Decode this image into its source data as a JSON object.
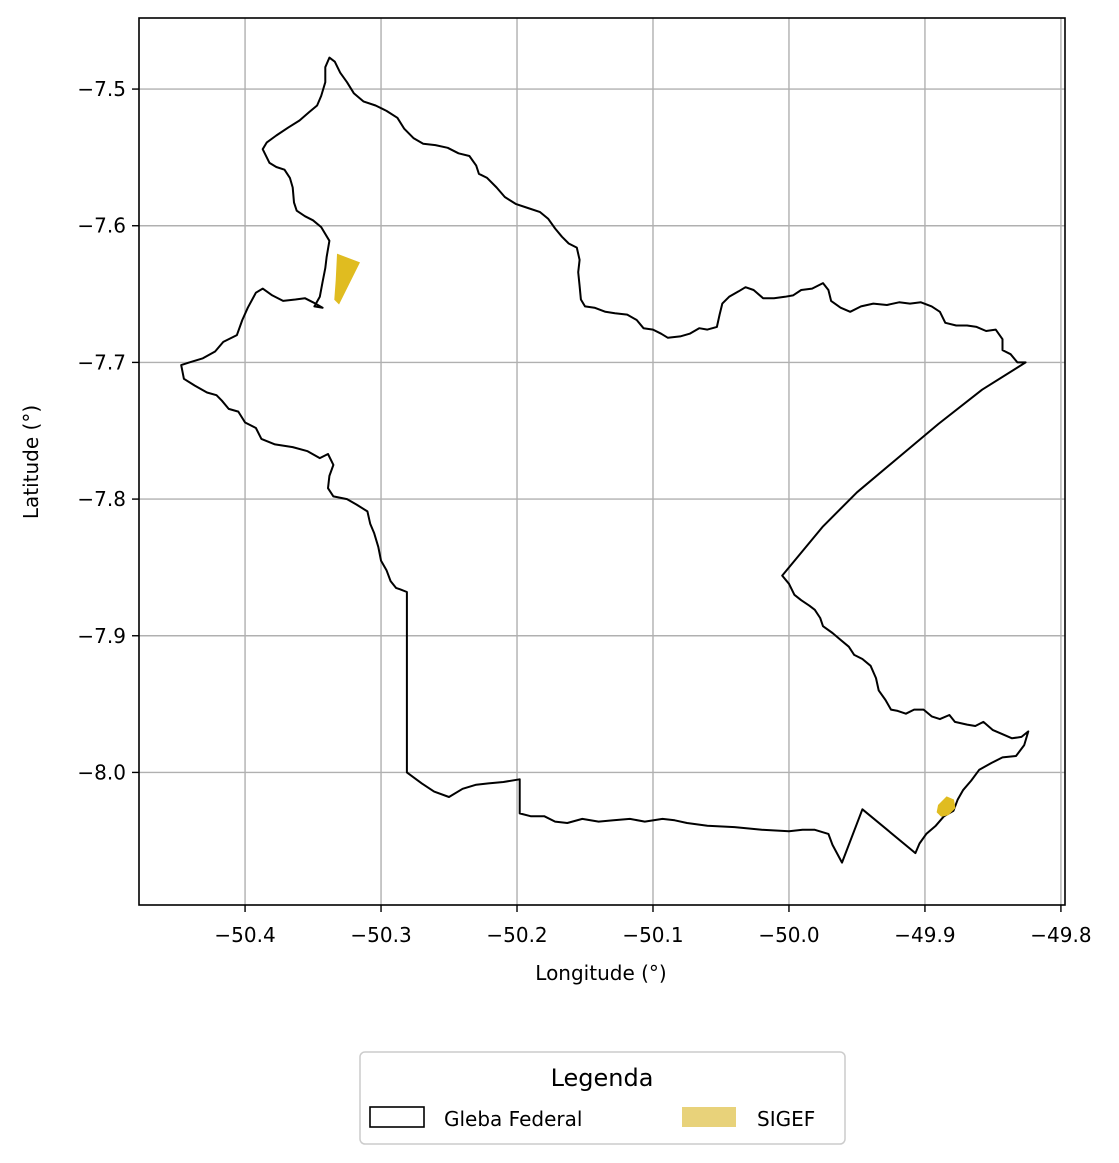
{
  "chart_data": {
    "type": "map",
    "xlabel": "Longitude (°)",
    "ylabel": "Latitude (°)",
    "xlim": [
      -50.478,
      -49.797
    ],
    "ylim": [
      -8.097,
      -7.448
    ],
    "x_ticks": [
      -50.4,
      -50.3,
      -50.2,
      -50.1,
      -50.0,
      -49.9,
      -49.8
    ],
    "y_ticks": [
      -7.5,
      -7.6,
      -7.7,
      -7.8,
      -7.9,
      -8.0
    ],
    "x_tick_labels": [
      "−50.4",
      "−50.3",
      "−50.2",
      "−50.1",
      "−50.0",
      "−49.9",
      "−49.8"
    ],
    "y_tick_labels": [
      "−7.5",
      "−7.6",
      "−7.7",
      "−7.8",
      "−7.9",
      "−8.0"
    ],
    "grid": true,
    "legend": {
      "title": "Legenda",
      "placement": "bottom-center",
      "entries": [
        {
          "label": "Gleba Federal",
          "style": "outline",
          "color": "#000000"
        },
        {
          "label": "SIGEF",
          "style": "fill",
          "color": "#e8d27a"
        }
      ]
    },
    "layers": [
      {
        "name": "Gleba Federal",
        "style": "outline",
        "color": "#000000",
        "polygon": [
          [
            -50.338,
            -7.477
          ],
          [
            -50.334,
            -7.48
          ],
          [
            -50.33,
            -7.488
          ],
          [
            -50.325,
            -7.495
          ],
          [
            -50.32,
            -7.503
          ],
          [
            -50.313,
            -7.509
          ],
          [
            -50.304,
            -7.512
          ],
          [
            -50.296,
            -7.516
          ],
          [
            -50.288,
            -7.521
          ],
          [
            -50.283,
            -7.529
          ],
          [
            -50.276,
            -7.536
          ],
          [
            -50.269,
            -7.54
          ],
          [
            -50.26,
            -7.541
          ],
          [
            -50.251,
            -7.543
          ],
          [
            -50.243,
            -7.547
          ],
          [
            -50.235,
            -7.549
          ],
          [
            -50.23,
            -7.556
          ],
          [
            -50.228,
            -7.562
          ],
          [
            -50.222,
            -7.565
          ],
          [
            -50.215,
            -7.572
          ],
          [
            -50.209,
            -7.579
          ],
          [
            -50.201,
            -7.584
          ],
          [
            -50.192,
            -7.587
          ],
          [
            -50.183,
            -7.59
          ],
          [
            -50.177,
            -7.595
          ],
          [
            -50.172,
            -7.602
          ],
          [
            -50.167,
            -7.608
          ],
          [
            -50.162,
            -7.613
          ],
          [
            -50.156,
            -7.616
          ],
          [
            -50.154,
            -7.625
          ],
          [
            -50.155,
            -7.634
          ],
          [
            -50.154,
            -7.644
          ],
          [
            -50.153,
            -7.654
          ],
          [
            -50.15,
            -7.659
          ],
          [
            -50.143,
            -7.66
          ],
          [
            -50.135,
            -7.663
          ],
          [
            -50.128,
            -7.664
          ],
          [
            -50.119,
            -7.665
          ],
          [
            -50.112,
            -7.669
          ],
          [
            -50.107,
            -7.675
          ],
          [
            -50.1,
            -7.676
          ],
          [
            -50.094,
            -7.679
          ],
          [
            -50.089,
            -7.682
          ],
          [
            -50.08,
            -7.681
          ],
          [
            -50.073,
            -7.679
          ],
          [
            -50.066,
            -7.675
          ],
          [
            -50.06,
            -7.676
          ],
          [
            -50.053,
            -7.674
          ],
          [
            -50.051,
            -7.665
          ],
          [
            -50.049,
            -7.657
          ],
          [
            -50.044,
            -7.652
          ],
          [
            -50.037,
            -7.648
          ],
          [
            -50.032,
            -7.645
          ],
          [
            -50.026,
            -7.647
          ],
          [
            -50.019,
            -7.653
          ],
          [
            -50.011,
            -7.653
          ],
          [
            -50.003,
            -7.652
          ],
          [
            -49.997,
            -7.651
          ],
          [
            -49.991,
            -7.647
          ],
          [
            -49.983,
            -7.646
          ],
          [
            -49.975,
            -7.642
          ],
          [
            -49.971,
            -7.647
          ],
          [
            -49.969,
            -7.655
          ],
          [
            -49.962,
            -7.66
          ],
          [
            -49.955,
            -7.663
          ],
          [
            -49.947,
            -7.659
          ],
          [
            -49.938,
            -7.657
          ],
          [
            -49.928,
            -7.658
          ],
          [
            -49.919,
            -7.656
          ],
          [
            -49.911,
            -7.657
          ],
          [
            -49.903,
            -7.656
          ],
          [
            -49.895,
            -7.659
          ],
          [
            -49.889,
            -7.663
          ],
          [
            -49.885,
            -7.671
          ],
          [
            -49.877,
            -7.673
          ],
          [
            -49.869,
            -7.673
          ],
          [
            -49.862,
            -7.674
          ],
          [
            -49.855,
            -7.677
          ],
          [
            -49.848,
            -7.676
          ],
          [
            -49.843,
            -7.683
          ],
          [
            -49.843,
            -7.691
          ],
          [
            -49.837,
            -7.694
          ],
          [
            -49.832,
            -7.7
          ],
          [
            -49.826,
            -7.7
          ],
          [
            -49.858,
            -7.72
          ],
          [
            -49.89,
            -7.745
          ],
          [
            -49.92,
            -7.77
          ],
          [
            -49.95,
            -7.795
          ],
          [
            -49.975,
            -7.82
          ],
          [
            -50.005,
            -7.856
          ],
          [
            -50.0,
            -7.862
          ],
          [
            -49.996,
            -7.87
          ],
          [
            -49.991,
            -7.874
          ],
          [
            -49.985,
            -7.878
          ],
          [
            -49.981,
            -7.881
          ],
          [
            -49.977,
            -7.887
          ],
          [
            -49.975,
            -7.893
          ],
          [
            -49.968,
            -7.898
          ],
          [
            -49.962,
            -7.903
          ],
          [
            -49.956,
            -7.908
          ],
          [
            -49.952,
            -7.914
          ],
          [
            -49.946,
            -7.917
          ],
          [
            -49.94,
            -7.922
          ],
          [
            -49.936,
            -7.931
          ],
          [
            -49.934,
            -7.94
          ],
          [
            -49.929,
            -7.947
          ],
          [
            -49.925,
            -7.954
          ],
          [
            -49.92,
            -7.955
          ],
          [
            -49.914,
            -7.957
          ],
          [
            -49.908,
            -7.954
          ],
          [
            -49.901,
            -7.954
          ],
          [
            -49.895,
            -7.959
          ],
          [
            -49.889,
            -7.961
          ],
          [
            -49.882,
            -7.958
          ],
          [
            -49.878,
            -7.963
          ],
          [
            -49.869,
            -7.965
          ],
          [
            -49.863,
            -7.966
          ],
          [
            -49.857,
            -7.963
          ],
          [
            -49.85,
            -7.969
          ],
          [
            -49.843,
            -7.972
          ],
          [
            -49.836,
            -7.975
          ],
          [
            -49.829,
            -7.974
          ],
          [
            -49.824,
            -7.97
          ],
          [
            -49.827,
            -7.98
          ],
          [
            -49.833,
            -7.988
          ],
          [
            -49.843,
            -7.989
          ],
          [
            -49.851,
            -7.993
          ],
          [
            -49.86,
            -7.998
          ],
          [
            -49.866,
            -8.006
          ],
          [
            -49.872,
            -8.013
          ],
          [
            -49.876,
            -8.02
          ],
          [
            -49.879,
            -8.028
          ],
          [
            -49.886,
            -8.032
          ],
          [
            -49.892,
            -8.039
          ],
          [
            -49.899,
            -8.045
          ],
          [
            -49.904,
            -8.052
          ],
          [
            -49.907,
            -8.059
          ],
          [
            -49.946,
            -8.027
          ],
          [
            -49.961,
            -8.066
          ],
          [
            -49.968,
            -8.053
          ],
          [
            -49.971,
            -8.045
          ],
          [
            -49.981,
            -8.042
          ],
          [
            -49.99,
            -8.042
          ],
          [
            -50.0,
            -8.043
          ],
          [
            -50.02,
            -8.042
          ],
          [
            -50.04,
            -8.04
          ],
          [
            -50.06,
            -8.039
          ],
          [
            -50.075,
            -8.037
          ],
          [
            -50.084,
            -8.035
          ],
          [
            -50.093,
            -8.034
          ],
          [
            -50.106,
            -8.036
          ],
          [
            -50.117,
            -8.034
          ],
          [
            -50.129,
            -8.035
          ],
          [
            -50.14,
            -8.036
          ],
          [
            -50.152,
            -8.034
          ],
          [
            -50.163,
            -8.037
          ],
          [
            -50.172,
            -8.036
          ],
          [
            -50.18,
            -8.032
          ],
          [
            -50.19,
            -8.032
          ],
          [
            -50.198,
            -8.03
          ],
          [
            -50.198,
            -8.005
          ],
          [
            -50.21,
            -8.007
          ],
          [
            -50.221,
            -8.008
          ],
          [
            -50.23,
            -8.009
          ],
          [
            -50.24,
            -8.012
          ],
          [
            -50.25,
            -8.018
          ],
          [
            -50.261,
            -8.014
          ],
          [
            -50.27,
            -8.008
          ],
          [
            -50.281,
            -8.0
          ],
          [
            -50.281,
            -7.868
          ],
          [
            -50.286,
            -7.866
          ],
          [
            -50.289,
            -7.865
          ],
          [
            -50.293,
            -7.86
          ],
          [
            -50.296,
            -7.852
          ],
          [
            -50.3,
            -7.845
          ],
          [
            -50.302,
            -7.835
          ],
          [
            -50.305,
            -7.825
          ],
          [
            -50.308,
            -7.818
          ],
          [
            -50.31,
            -7.809
          ],
          [
            -50.318,
            -7.804
          ],
          [
            -50.325,
            -7.8
          ],
          [
            -50.335,
            -7.798
          ],
          [
            -50.339,
            -7.792
          ],
          [
            -50.338,
            -7.783
          ],
          [
            -50.335,
            -7.775
          ],
          [
            -50.339,
            -7.767
          ],
          [
            -50.345,
            -7.77
          ],
          [
            -50.354,
            -7.765
          ],
          [
            -50.365,
            -7.762
          ],
          [
            -50.378,
            -7.76
          ],
          [
            -50.388,
            -7.756
          ],
          [
            -50.392,
            -7.748
          ],
          [
            -50.4,
            -7.744
          ],
          [
            -50.405,
            -7.736
          ],
          [
            -50.412,
            -7.734
          ],
          [
            -50.417,
            -7.728
          ],
          [
            -50.421,
            -7.724
          ],
          [
            -50.428,
            -7.722
          ],
          [
            -50.437,
            -7.717
          ],
          [
            -50.445,
            -7.712
          ],
          [
            -50.447,
            -7.702
          ],
          [
            -50.441,
            -7.7
          ],
          [
            -50.431,
            -7.697
          ],
          [
            -50.422,
            -7.692
          ],
          [
            -50.416,
            -7.685
          ],
          [
            -50.406,
            -7.68
          ],
          [
            -50.402,
            -7.669
          ],
          [
            -50.398,
            -7.66
          ],
          [
            -50.392,
            -7.649
          ],
          [
            -50.387,
            -7.646
          ],
          [
            -50.38,
            -7.651
          ],
          [
            -50.372,
            -7.655
          ],
          [
            -50.363,
            -7.654
          ],
          [
            -50.356,
            -7.653
          ],
          [
            -50.35,
            -7.656
          ],
          [
            -50.343,
            -7.66
          ],
          [
            -50.349,
            -7.659
          ],
          [
            -50.345,
            -7.652
          ],
          [
            -50.343,
            -7.641
          ],
          [
            -50.341,
            -7.631
          ],
          [
            -50.34,
            -7.623
          ],
          [
            -50.338,
            -7.611
          ],
          [
            -50.344,
            -7.601
          ],
          [
            -50.35,
            -7.596
          ],
          [
            -50.356,
            -7.593
          ],
          [
            -50.362,
            -7.589
          ],
          [
            -50.364,
            -7.583
          ],
          [
            -50.365,
            -7.572
          ],
          [
            -50.367,
            -7.565
          ],
          [
            -50.371,
            -7.559
          ],
          [
            -50.377,
            -7.557
          ],
          [
            -50.382,
            -7.554
          ],
          [
            -50.387,
            -7.544
          ],
          [
            -50.384,
            -7.539
          ],
          [
            -50.377,
            -7.534
          ],
          [
            -50.368,
            -7.528
          ],
          [
            -50.36,
            -7.523
          ],
          [
            -50.353,
            -7.517
          ],
          [
            -50.347,
            -7.512
          ],
          [
            -50.344,
            -7.505
          ],
          [
            -50.341,
            -7.495
          ],
          [
            -50.341,
            -7.484
          ],
          [
            -50.338,
            -7.477
          ]
        ]
      },
      {
        "name": "SIGEF",
        "style": "fill",
        "color": "#e0bc20",
        "polygons": [
          [
            [
              -50.332,
              -7.621
            ],
            [
              -50.316,
              -7.627
            ],
            [
              -50.331,
              -7.657
            ],
            [
              -50.334,
              -7.654
            ],
            [
              -50.333,
              -7.64
            ]
          ],
          [
            [
              -49.89,
              -8.024
            ],
            [
              -49.884,
              -8.018
            ],
            [
              -49.879,
              -8.02
            ],
            [
              -49.878,
              -8.026
            ],
            [
              -49.883,
              -8.031
            ],
            [
              -49.888,
              -8.032
            ],
            [
              -49.891,
              -8.029
            ]
          ]
        ]
      }
    ]
  }
}
